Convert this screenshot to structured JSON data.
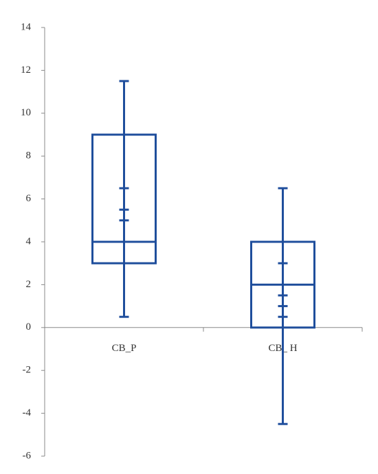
{
  "chart_data": {
    "type": "box",
    "categories": [
      "CB_P",
      "CB_ H"
    ],
    "boxes": [
      {
        "low": 0.5,
        "q1": 3,
        "median": 4,
        "q3": 9,
        "high": 11.5,
        "caps": [
          6.5,
          5.5,
          5
        ]
      },
      {
        "low": -4.5,
        "q1": 0,
        "median": 2,
        "q3": 4,
        "high": 6.5,
        "caps": [
          3,
          1.5,
          1,
          0.5
        ]
      }
    ],
    "color": "#1f4e9c",
    "ylim": [
      -6,
      14
    ],
    "yticks": [
      -6,
      -4,
      -2,
      0,
      2,
      4,
      6,
      8,
      10,
      12,
      14
    ]
  }
}
